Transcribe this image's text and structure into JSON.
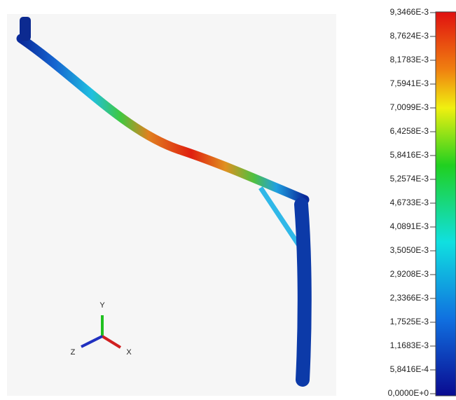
{
  "legend": {
    "labels": [
      "9,3466E-3",
      "8,7624E-3",
      "8,1783E-3",
      "7,5941E-3",
      "7,0099E-3",
      "6,4258E-3",
      "5,8416E-3",
      "5,2574E-3",
      "4,6733E-3",
      "4,0891E-3",
      "3,5050E-3",
      "2,9208E-3",
      "2,3366E-3",
      "1,7525E-3",
      "1,1683E-3",
      "5,8416E-4",
      "0,0000E+0"
    ]
  },
  "triad": {
    "x": "X",
    "y": "Y",
    "z": "Z"
  }
}
